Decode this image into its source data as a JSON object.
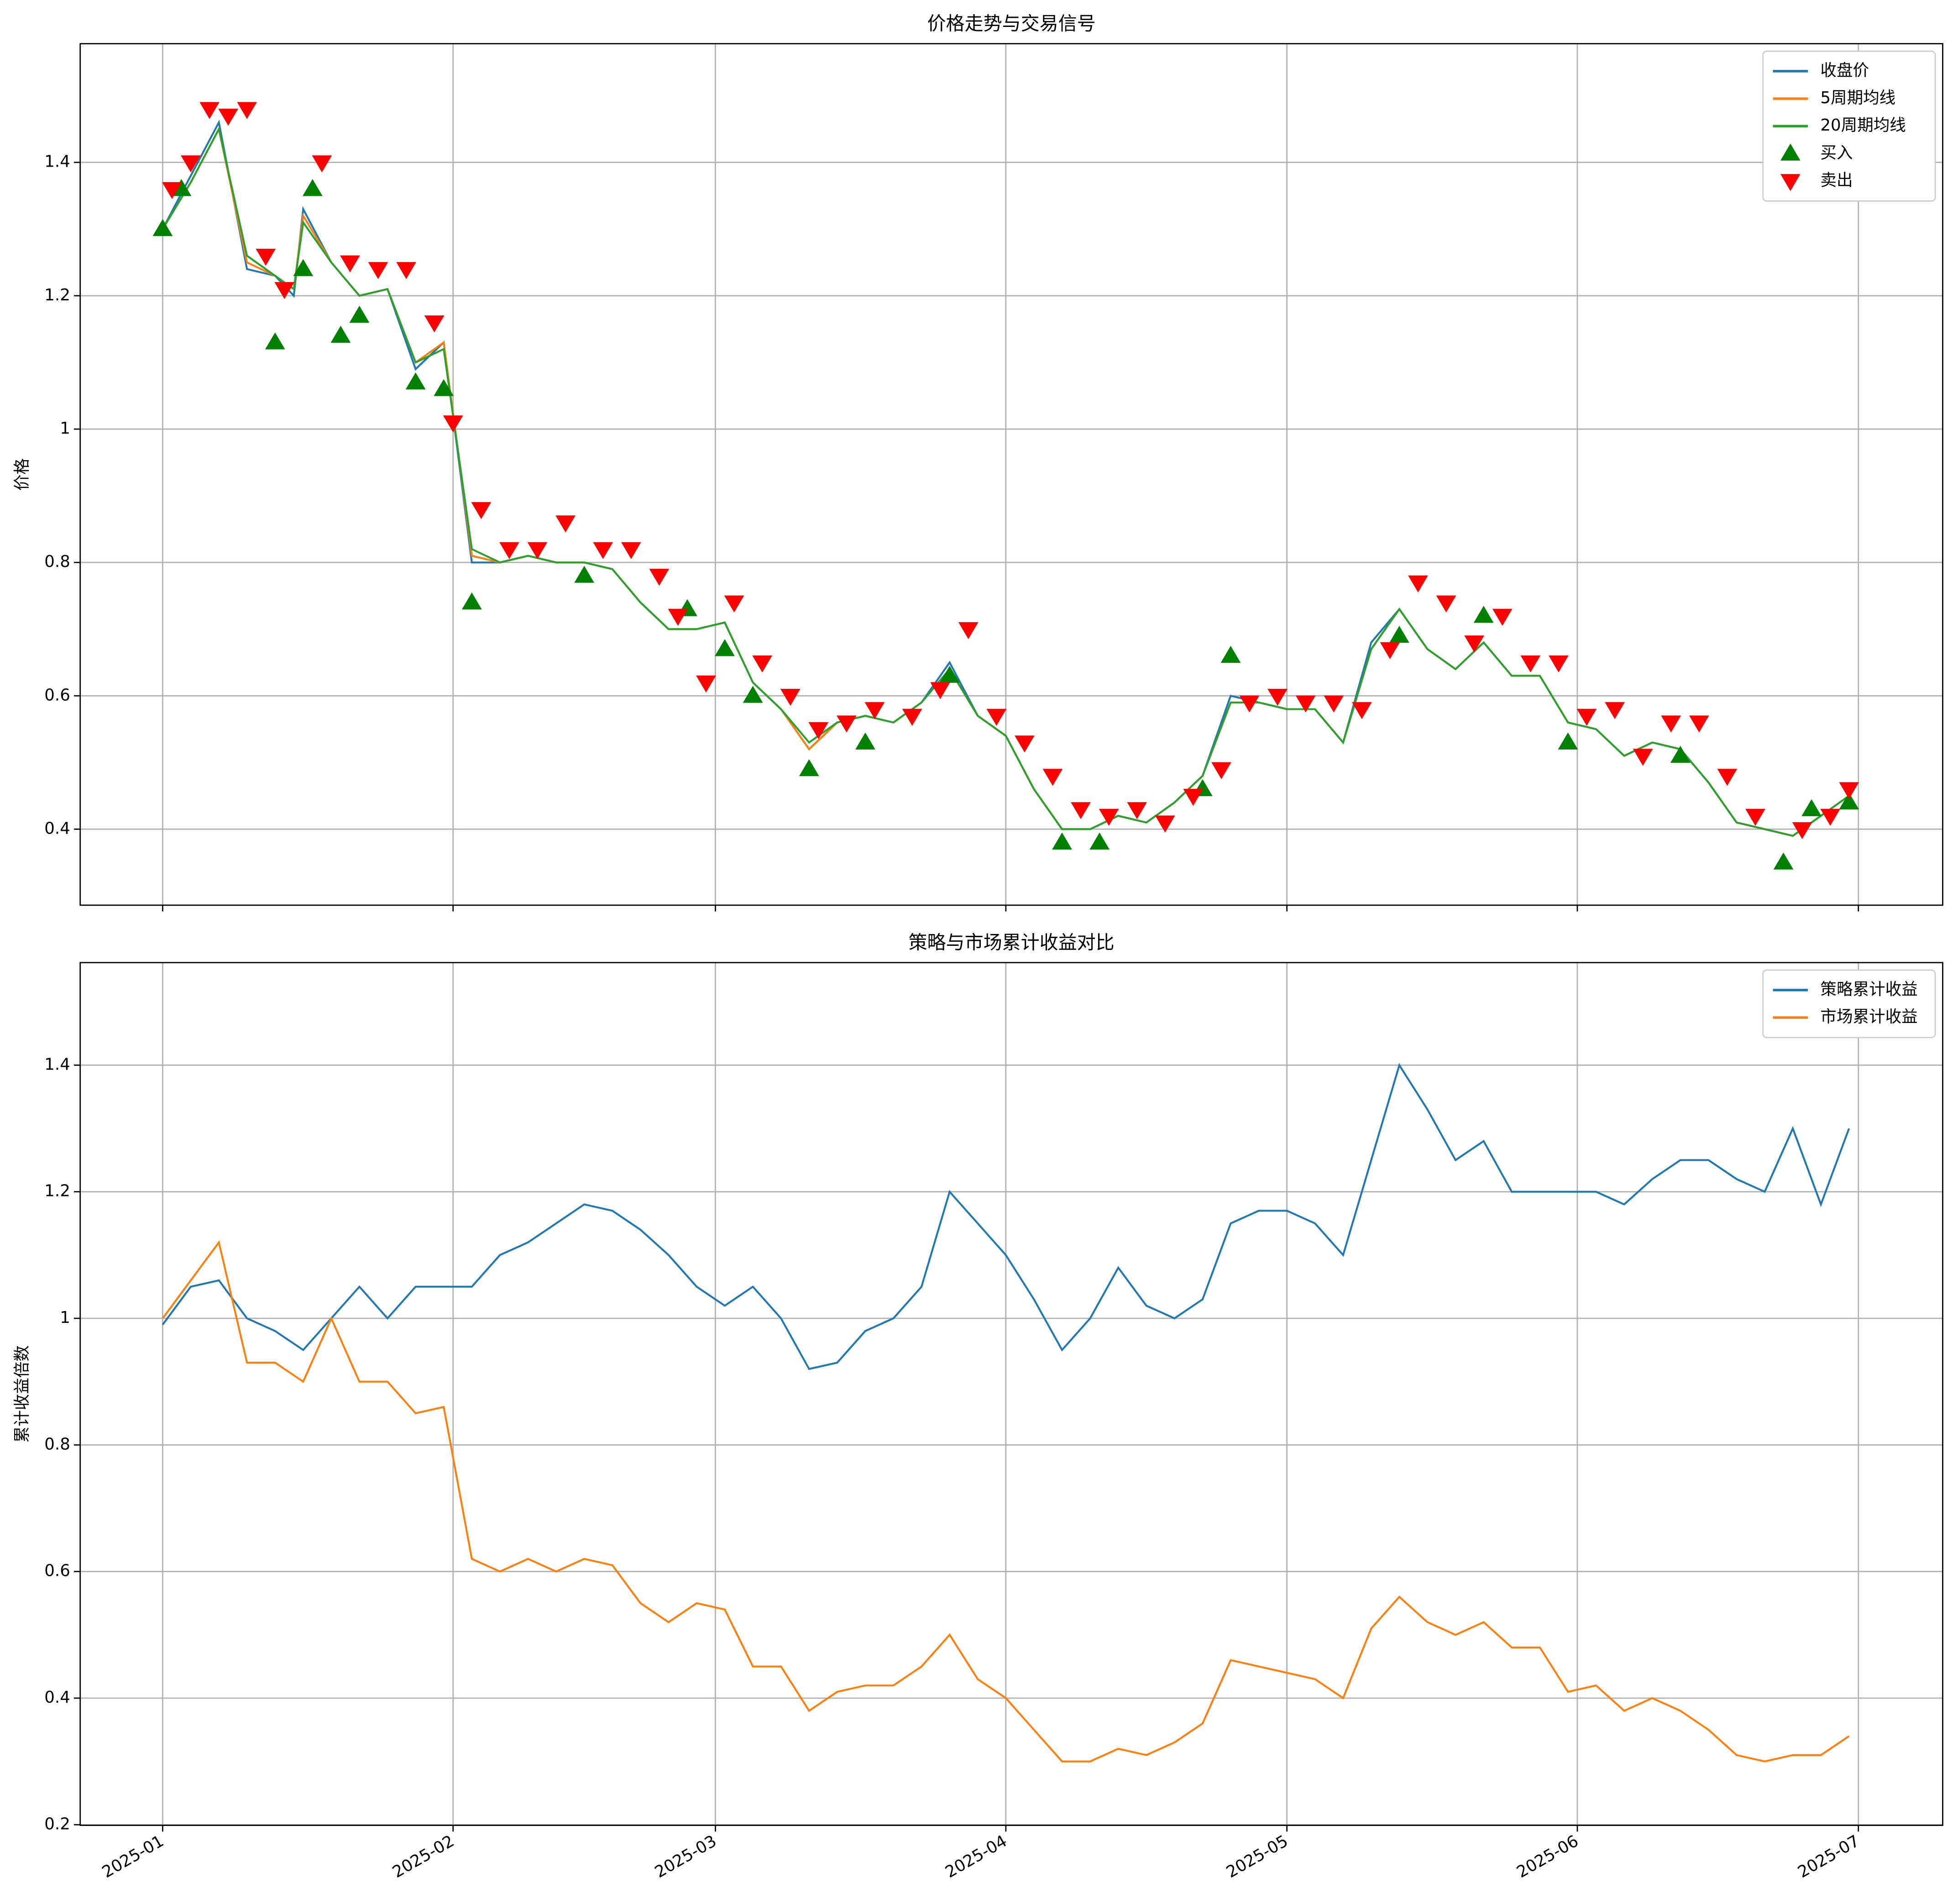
{
  "chart_data": [
    {
      "type": "line",
      "title": "价格走势与交易信号",
      "ylabel": "价格",
      "x": [
        0,
        3,
        6,
        9,
        12,
        14,
        15,
        18,
        21,
        24,
        27,
        30,
        33,
        36,
        39,
        42,
        45,
        48,
        51,
        54,
        57,
        60,
        63,
        66,
        69,
        72,
        75,
        78,
        81,
        84,
        87,
        90,
        93,
        96,
        99,
        102,
        105,
        108,
        111,
        114,
        117,
        120,
        123,
        126,
        129,
        132,
        135,
        138,
        141,
        144,
        147,
        150,
        153,
        156,
        159,
        162,
        165,
        168,
        171,
        174,
        177,
        180
      ],
      "series": [
        {
          "name": "收盘价",
          "color": "#1f77b4",
          "values": [
            1.3,
            1.38,
            1.46,
            1.24,
            1.23,
            1.2,
            1.33,
            1.25,
            1.2,
            1.21,
            1.09,
            1.13,
            0.8,
            0.8,
            0.81,
            0.8,
            0.8,
            0.79,
            0.74,
            0.7,
            0.7,
            0.71,
            0.62,
            0.58,
            0.52,
            0.56,
            0.57,
            0.56,
            0.59,
            0.65,
            0.57,
            0.54,
            0.46,
            0.4,
            0.4,
            0.42,
            0.41,
            0.44,
            0.48,
            0.6,
            0.59,
            0.58,
            0.58,
            0.53,
            0.68,
            0.73,
            0.67,
            0.64,
            0.68,
            0.63,
            0.63,
            0.56,
            0.55,
            0.51,
            0.53,
            0.52,
            0.47,
            0.41,
            0.4,
            0.39,
            0.42,
            0.45
          ]
        },
        {
          "name": "5周期均线",
          "color": "#ff7f0e",
          "values": [
            1.3,
            1.37,
            1.45,
            1.25,
            1.23,
            1.21,
            1.32,
            1.25,
            1.2,
            1.21,
            1.1,
            1.13,
            0.81,
            0.8,
            0.81,
            0.8,
            0.8,
            0.79,
            0.74,
            0.7,
            0.7,
            0.71,
            0.62,
            0.58,
            0.52,
            0.56,
            0.57,
            0.56,
            0.59,
            0.64,
            0.57,
            0.54,
            0.46,
            0.4,
            0.4,
            0.42,
            0.41,
            0.44,
            0.48,
            0.59,
            0.59,
            0.58,
            0.58,
            0.53,
            0.67,
            0.73,
            0.67,
            0.64,
            0.68,
            0.63,
            0.63,
            0.56,
            0.55,
            0.51,
            0.53,
            0.52,
            0.47,
            0.41,
            0.4,
            0.39,
            0.42,
            0.45
          ]
        },
        {
          "name": "20周期均线",
          "color": "#2ca02c",
          "values": [
            1.3,
            1.37,
            1.45,
            1.26,
            1.23,
            1.21,
            1.31,
            1.25,
            1.2,
            1.21,
            1.1,
            1.12,
            0.82,
            0.8,
            0.81,
            0.8,
            0.8,
            0.79,
            0.74,
            0.7,
            0.7,
            0.71,
            0.62,
            0.58,
            0.53,
            0.56,
            0.57,
            0.56,
            0.59,
            0.64,
            0.57,
            0.54,
            0.46,
            0.4,
            0.4,
            0.42,
            0.41,
            0.44,
            0.48,
            0.59,
            0.59,
            0.58,
            0.58,
            0.53,
            0.67,
            0.73,
            0.67,
            0.64,
            0.68,
            0.63,
            0.63,
            0.56,
            0.55,
            0.51,
            0.53,
            0.52,
            0.47,
            0.41,
            0.4,
            0.39,
            0.42,
            0.45
          ]
        },
        {
          "name": "买入",
          "color": "#008000",
          "type": "scatter",
          "marker": "up",
          "x": [
            0,
            2,
            12,
            15,
            16,
            19,
            21,
            27,
            30,
            33,
            45,
            56,
            60,
            63,
            69,
            75,
            84,
            96,
            100,
            111,
            114,
            132,
            141,
            150,
            162,
            173,
            176,
            180
          ],
          "values": [
            1.3,
            1.36,
            1.13,
            1.24,
            1.36,
            1.14,
            1.17,
            1.07,
            1.06,
            0.74,
            0.78,
            0.73,
            0.67,
            0.6,
            0.49,
            0.53,
            0.63,
            0.38,
            0.38,
            0.46,
            0.66,
            0.69,
            0.72,
            0.53,
            0.51,
            0.35,
            0.43,
            0.44
          ]
        },
        {
          "name": "卖出",
          "color": "#ff0000",
          "type": "scatter",
          "marker": "down",
          "x": [
            1,
            3,
            5,
            7,
            9,
            11,
            13,
            17,
            20,
            23,
            26,
            29,
            31,
            34,
            37,
            40,
            43,
            47,
            50,
            53,
            55,
            58,
            61,
            64,
            67,
            70,
            73,
            76,
            80,
            83,
            86,
            89,
            92,
            95,
            98,
            101,
            104,
            107,
            110,
            113,
            116,
            119,
            122,
            125,
            128,
            131,
            134,
            137,
            140,
            143,
            146,
            149,
            152,
            155,
            158,
            161,
            164,
            167,
            170,
            175,
            178,
            180
          ],
          "values": [
            1.36,
            1.4,
            1.48,
            1.47,
            1.48,
            1.26,
            1.21,
            1.4,
            1.25,
            1.24,
            1.24,
            1.16,
            1.01,
            0.88,
            0.82,
            0.82,
            0.86,
            0.82,
            0.82,
            0.78,
            0.72,
            0.62,
            0.74,
            0.65,
            0.6,
            0.55,
            0.56,
            0.58,
            0.57,
            0.61,
            0.7,
            0.57,
            0.53,
            0.48,
            0.43,
            0.42,
            0.43,
            0.41,
            0.45,
            0.49,
            0.59,
            0.6,
            0.59,
            0.59,
            0.58,
            0.67,
            0.77,
            0.74,
            0.68,
            0.72,
            0.65,
            0.65,
            0.57,
            0.58,
            0.51,
            0.56,
            0.56,
            0.48,
            0.42,
            0.4,
            0.42,
            0.46
          ]
        }
      ],
      "xlim": [
        -8.8,
        190
      ],
      "xticks": [
        0,
        31,
        59,
        90,
        120,
        151,
        181
      ],
      "ylim": [
        0.286,
        1.578
      ],
      "yticks": [
        0.4,
        0.6,
        0.8,
        1.0,
        1.2,
        1.4
      ],
      "grid": true,
      "legend": "upper right"
    },
    {
      "type": "line",
      "title": "策略与市场累计收益对比",
      "ylabel": "累计收益倍数",
      "x": [
        0,
        3,
        6,
        9,
        12,
        15,
        18,
        21,
        24,
        27,
        30,
        33,
        36,
        39,
        42,
        45,
        48,
        51,
        54,
        57,
        60,
        63,
        66,
        69,
        72,
        75,
        78,
        81,
        84,
        87,
        90,
        93,
        96,
        99,
        102,
        105,
        108,
        111,
        114,
        117,
        120,
        123,
        126,
        129,
        132,
        135,
        138,
        141,
        144,
        147,
        150,
        153,
        156,
        159,
        162,
        165,
        168,
        171,
        174,
        177,
        180
      ],
      "series": [
        {
          "name": "策略累计收益",
          "color": "#1f77b4",
          "values": [
            0.99,
            1.05,
            1.06,
            1.0,
            0.98,
            0.95,
            1.0,
            1.05,
            1.0,
            1.05,
            1.05,
            1.05,
            1.1,
            1.12,
            1.15,
            1.18,
            1.17,
            1.14,
            1.1,
            1.05,
            1.02,
            1.05,
            1.0,
            0.92,
            0.93,
            0.98,
            1.0,
            1.05,
            1.2,
            1.15,
            1.1,
            1.03,
            0.95,
            1.0,
            1.08,
            1.02,
            1.0,
            1.03,
            1.15,
            1.17,
            1.17,
            1.15,
            1.1,
            1.25,
            1.4,
            1.33,
            1.25,
            1.28,
            1.2,
            1.2,
            1.2,
            1.2,
            1.18,
            1.22,
            1.25,
            1.25,
            1.22,
            1.2,
            1.3,
            1.18,
            1.3
          ]
        },
        {
          "name": "市场累计收益",
          "color": "#ff7f0e",
          "values": [
            1.0,
            1.06,
            1.12,
            0.93,
            0.93,
            0.9,
            1.0,
            0.9,
            0.9,
            0.85,
            0.86,
            0.62,
            0.6,
            0.62,
            0.6,
            0.62,
            0.61,
            0.55,
            0.52,
            0.55,
            0.54,
            0.45,
            0.45,
            0.38,
            0.41,
            0.42,
            0.42,
            0.45,
            0.5,
            0.43,
            0.4,
            0.35,
            0.3,
            0.3,
            0.32,
            0.31,
            0.33,
            0.36,
            0.46,
            0.45,
            0.44,
            0.43,
            0.4,
            0.51,
            0.56,
            0.52,
            0.5,
            0.52,
            0.48,
            0.48,
            0.41,
            0.42,
            0.38,
            0.4,
            0.38,
            0.35,
            0.31,
            0.3,
            0.31,
            0.31,
            0.34
          ]
        }
      ],
      "xlim": [
        -8.8,
        190
      ],
      "xticks": [
        {
          "value": 0,
          "label": "2025-01"
        },
        {
          "value": 31,
          "label": "2025-02"
        },
        {
          "value": 59,
          "label": "2025-03"
        },
        {
          "value": 90,
          "label": "2025-04"
        },
        {
          "value": 120,
          "label": "2025-05"
        },
        {
          "value": 151,
          "label": "2025-06"
        },
        {
          "value": 181,
          "label": "2025-07"
        }
      ],
      "ylim": [
        0.199,
        1.562
      ],
      "yticks": [
        0.2,
        0.4,
        0.6,
        0.8,
        1.0,
        1.2,
        1.4
      ],
      "grid": true,
      "legend": "upper right"
    }
  ]
}
